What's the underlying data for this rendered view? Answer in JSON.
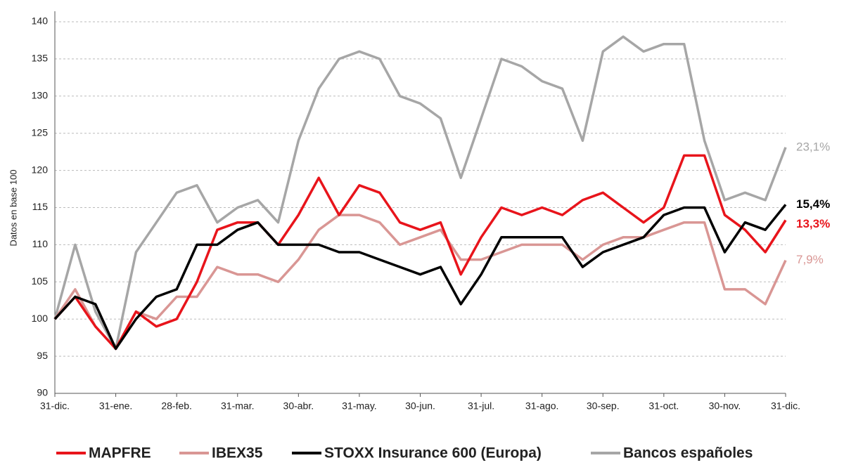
{
  "chart_data": {
    "type": "line",
    "y_label": "Datos en base 100",
    "categories": [
      "31-dic.",
      null,
      null,
      "31-ene.",
      null,
      null,
      "28-feb.",
      null,
      null,
      "31-mar.",
      null,
      null,
      "30-abr.",
      null,
      null,
      "31-may.",
      null,
      null,
      "30-jun.",
      null,
      null,
      "31-jul.",
      null,
      null,
      "31-ago.",
      null,
      null,
      "30-sep.",
      null,
      null,
      "31-oct.",
      null,
      null,
      "30-nov.",
      null,
      null,
      "31-dic."
    ],
    "series": [
      {
        "name": "MAPFRE",
        "color": "#e8141b",
        "end_label": "13,3%",
        "end_bold": true,
        "values": [
          100,
          103,
          99,
          96,
          101,
          99,
          100,
          105,
          112,
          113,
          113,
          110,
          114,
          119,
          114,
          118,
          117,
          113,
          112,
          113,
          106,
          111,
          115,
          114,
          115,
          114,
          116,
          117,
          115,
          113,
          115,
          122,
          122,
          114,
          112,
          109,
          113.3
        ]
      },
      {
        "name": "IBEX35",
        "color": "#d99694",
        "end_label": "7,9%",
        "end_bold": false,
        "values": [
          100,
          104,
          99,
          96,
          101,
          100,
          103,
          103,
          107,
          106,
          106,
          105,
          108,
          112,
          114,
          114,
          113,
          110,
          111,
          112,
          108,
          108,
          109,
          110,
          110,
          110,
          108,
          110,
          111,
          111,
          112,
          113,
          113,
          104,
          104,
          102,
          107.9
        ]
      },
      {
        "name": "STOXX Insurance 600 (Europa)",
        "color": "#000000",
        "end_label": "15,4%",
        "end_bold": true,
        "values": [
          100,
          103,
          102,
          96,
          100,
          103,
          104,
          110,
          110,
          112,
          113,
          110,
          110,
          110,
          109,
          109,
          108,
          107,
          106,
          107,
          102,
          106,
          111,
          111,
          111,
          111,
          107,
          109,
          110,
          111,
          114,
          115,
          115,
          109,
          113,
          112,
          115.4
        ]
      },
      {
        "name": "Bancos españoles",
        "color": "#a6a6a6",
        "end_label": "23,1%",
        "end_bold": false,
        "values": [
          100,
          110,
          101,
          96,
          109,
          113,
          117,
          118,
          113,
          115,
          116,
          113,
          124,
          131,
          135,
          136,
          135,
          130,
          129,
          127,
          119,
          127,
          135,
          134,
          132,
          131,
          124,
          136,
          138,
          136,
          137,
          137,
          124,
          116,
          117,
          116,
          123.1
        ]
      }
    ],
    "ylim": [
      90,
      140
    ],
    "yticks": [
      90,
      95,
      100,
      105,
      110,
      115,
      120,
      125,
      130,
      135,
      140
    ],
    "grid": true
  }
}
